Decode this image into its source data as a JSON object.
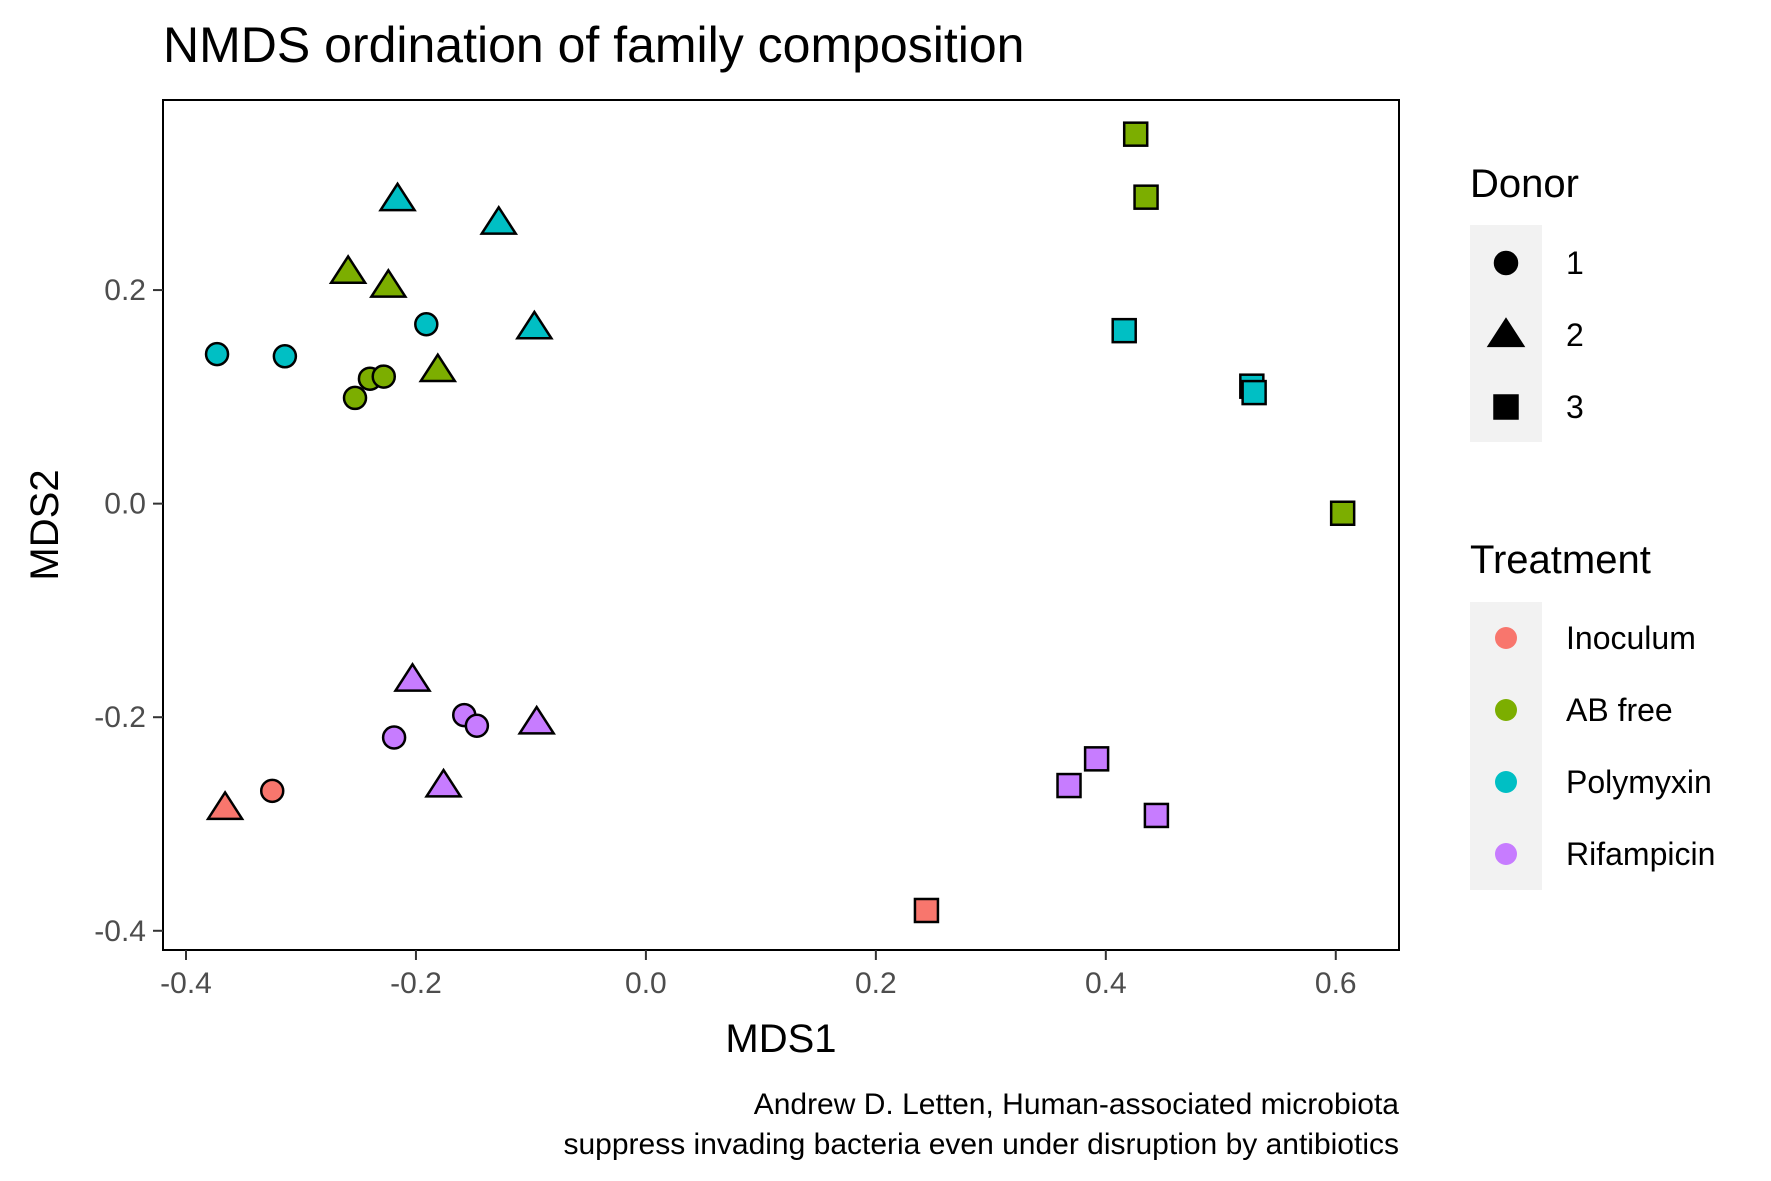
{
  "chart_data": {
    "type": "scatter",
    "title": "NMDS ordination of family composition",
    "xlabel": "MDS1",
    "ylabel": "MDS2",
    "xlim": [
      -0.42,
      0.655
    ],
    "ylim": [
      -0.418,
      0.378
    ],
    "xticks": [
      -0.4,
      -0.2,
      0.0,
      0.2,
      0.4,
      0.6
    ],
    "yticks": [
      -0.4,
      -0.2,
      0.0,
      0.2
    ],
    "xtick_labels": [
      "-0.4",
      "-0.2",
      "0.0",
      "0.2",
      "0.4",
      "0.6"
    ],
    "ytick_labels": [
      "-0.4",
      "-0.2",
      "0.0",
      "0.2"
    ],
    "grid": false,
    "caption_lines": [
      "Andrew D. Letten, Human-associated microbiota",
      "suppress invading bacteria even under disruption by antibiotics"
    ],
    "legend_shape": {
      "title": "Donor",
      "entries": [
        {
          "label": "1",
          "shape": "circle"
        },
        {
          "label": "2",
          "shape": "triangle"
        },
        {
          "label": "3",
          "shape": "square"
        }
      ]
    },
    "legend_color": {
      "title": "Treatment",
      "entries": [
        {
          "label": "Inoculum",
          "color": "#F8766D"
        },
        {
          "label": "AB free",
          "color": "#7CAE00"
        },
        {
          "label": "Polymyxin",
          "color": "#00BFC4"
        },
        {
          "label": "Rifampicin",
          "color": "#C77CFF"
        }
      ]
    },
    "points": [
      {
        "x": -0.325,
        "y": -0.269,
        "donor": "1",
        "treatment": "Inoculum"
      },
      {
        "x": -0.366,
        "y": -0.285,
        "donor": "2",
        "treatment": "Inoculum"
      },
      {
        "x": 0.244,
        "y": -0.381,
        "donor": "3",
        "treatment": "Inoculum"
      },
      {
        "x": -0.253,
        "y": 0.099,
        "donor": "1",
        "treatment": "AB free"
      },
      {
        "x": -0.24,
        "y": 0.117,
        "donor": "1",
        "treatment": "AB free"
      },
      {
        "x": -0.228,
        "y": 0.119,
        "donor": "1",
        "treatment": "AB free"
      },
      {
        "x": -0.259,
        "y": 0.217,
        "donor": "2",
        "treatment": "AB free"
      },
      {
        "x": -0.224,
        "y": 0.204,
        "donor": "2",
        "treatment": "AB free"
      },
      {
        "x": -0.181,
        "y": 0.125,
        "donor": "2",
        "treatment": "AB free"
      },
      {
        "x": 0.426,
        "y": 0.346,
        "donor": "3",
        "treatment": "AB free"
      },
      {
        "x": 0.435,
        "y": 0.287,
        "donor": "3",
        "treatment": "AB free"
      },
      {
        "x": 0.606,
        "y": -0.009,
        "donor": "3",
        "treatment": "AB free"
      },
      {
        "x": -0.373,
        "y": 0.14,
        "donor": "1",
        "treatment": "Polymyxin"
      },
      {
        "x": -0.314,
        "y": 0.138,
        "donor": "1",
        "treatment": "Polymyxin"
      },
      {
        "x": -0.191,
        "y": 0.168,
        "donor": "1",
        "treatment": "Polymyxin"
      },
      {
        "x": -0.216,
        "y": 0.285,
        "donor": "2",
        "treatment": "Polymyxin"
      },
      {
        "x": -0.128,
        "y": 0.263,
        "donor": "2",
        "treatment": "Polymyxin"
      },
      {
        "x": -0.097,
        "y": 0.165,
        "donor": "2",
        "treatment": "Polymyxin"
      },
      {
        "x": 0.416,
        "y": 0.162,
        "donor": "3",
        "treatment": "Polymyxin"
      },
      {
        "x": 0.527,
        "y": 0.11,
        "donor": "3",
        "treatment": "Polymyxin"
      },
      {
        "x": 0.529,
        "y": 0.104,
        "donor": "3",
        "treatment": "Polymyxin"
      },
      {
        "x": -0.219,
        "y": -0.219,
        "donor": "1",
        "treatment": "Rifampicin"
      },
      {
        "x": -0.158,
        "y": -0.198,
        "donor": "1",
        "treatment": "Rifampicin"
      },
      {
        "x": -0.147,
        "y": -0.208,
        "donor": "1",
        "treatment": "Rifampicin"
      },
      {
        "x": -0.203,
        "y": -0.165,
        "donor": "2",
        "treatment": "Rifampicin"
      },
      {
        "x": -0.095,
        "y": -0.205,
        "donor": "2",
        "treatment": "Rifampicin"
      },
      {
        "x": -0.176,
        "y": -0.264,
        "donor": "2",
        "treatment": "Rifampicin"
      },
      {
        "x": 0.368,
        "y": -0.264,
        "donor": "3",
        "treatment": "Rifampicin"
      },
      {
        "x": 0.392,
        "y": -0.239,
        "donor": "3",
        "treatment": "Rifampicin"
      },
      {
        "x": 0.444,
        "y": -0.292,
        "donor": "3",
        "treatment": "Rifampicin"
      }
    ]
  }
}
